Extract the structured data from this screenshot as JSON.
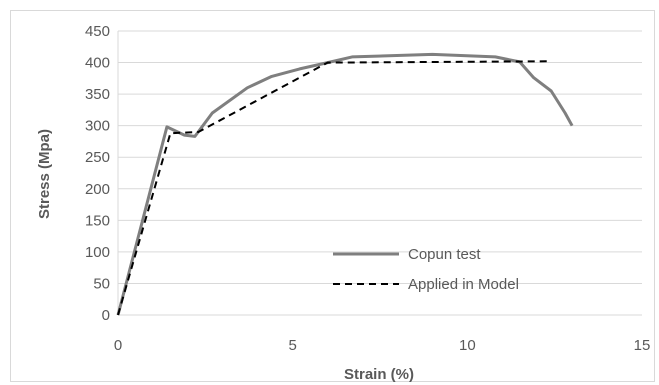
{
  "chart_data": {
    "type": "line",
    "title": "",
    "xlabel": "Strain (%)",
    "ylabel": "Stress (Mpa)",
    "xlim": [
      0,
      15
    ],
    "ylim": [
      0,
      450
    ],
    "x_ticks": [
      0,
      5,
      10,
      15
    ],
    "y_ticks": [
      0,
      50,
      100,
      150,
      200,
      250,
      300,
      350,
      400,
      450
    ],
    "grid": "horizontal",
    "legend_position": "bottom-right inside plot",
    "series": [
      {
        "name": "Copun test",
        "style": "solid",
        "color": "#7f7f7f",
        "x": [
          0,
          1.4,
          1.9,
          2.2,
          2.7,
          3.7,
          4.4,
          5.2,
          6.0,
          6.7,
          9.0,
          10.8,
          11.5,
          11.9,
          12.4,
          12.8,
          13.0
        ],
        "y": [
          0,
          298,
          285,
          283,
          320,
          360,
          378,
          390,
          400,
          409,
          413,
          409,
          401,
          376,
          355,
          320,
          300
        ]
      },
      {
        "name": "Applied in Model",
        "style": "dashed",
        "color": "#000000",
        "x": [
          0,
          1.5,
          2.3,
          6.0,
          12.3
        ],
        "y": [
          0,
          288,
          290,
          400,
          402
        ]
      }
    ]
  }
}
